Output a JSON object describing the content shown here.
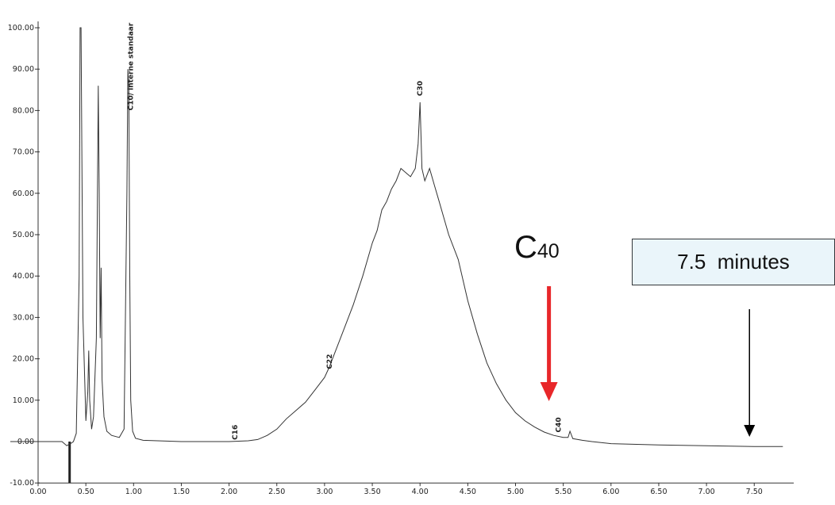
{
  "chart_data": {
    "type": "line",
    "xlim": [
      0,
      7.8
    ],
    "ylim": [
      -10,
      100
    ],
    "x_ticks": [
      "0.00",
      "0.50",
      "1.00",
      "1.50",
      "2.00",
      "2.50",
      "3.00",
      "3.50",
      "4.00",
      "4.50",
      "5.00",
      "5.50",
      "6.00",
      "6.50",
      "7.00",
      "7.50"
    ],
    "y_ticks": [
      "-10.00",
      "0.00",
      "10.00",
      "20.00",
      "30.00",
      "40.00",
      "50.00",
      "60.00",
      "70.00",
      "80.00",
      "90.00",
      "100.00"
    ],
    "series": [
      {
        "x": [
          0.0,
          0.25,
          0.3,
          0.34,
          0.37,
          0.4,
          0.43,
          0.44,
          0.45,
          0.47,
          0.5,
          0.52,
          0.53,
          0.54,
          0.56,
          0.58,
          0.61,
          0.63,
          0.64,
          0.65,
          0.66,
          0.67,
          0.69,
          0.72,
          0.77,
          0.85,
          0.9,
          0.93,
          0.94,
          0.95,
          0.96,
          0.97,
          0.99,
          1.02,
          1.1,
          1.5,
          2.0,
          2.2,
          2.3,
          2.4,
          2.5,
          2.6,
          2.7,
          2.8,
          2.9,
          3.0,
          3.05,
          3.1,
          3.2,
          3.3,
          3.4,
          3.5,
          3.55,
          3.6,
          3.65,
          3.7,
          3.75,
          3.8,
          3.85,
          3.9,
          3.95,
          3.98,
          4.0,
          4.02,
          4.05,
          4.1,
          4.15,
          4.2,
          4.25,
          4.3,
          4.4,
          4.5,
          4.6,
          4.7,
          4.8,
          4.9,
          5.0,
          5.1,
          5.2,
          5.3,
          5.4,
          5.5,
          5.55,
          5.57,
          5.6,
          5.7,
          5.8,
          6.0,
          6.5,
          7.0,
          7.5,
          7.8
        ],
        "y": [
          0.0,
          0.0,
          -1.0,
          -0.5,
          0.0,
          2.0,
          40.0,
          100.0,
          100.0,
          30.0,
          5.0,
          12.0,
          22.0,
          10.0,
          3.0,
          6.0,
          25.0,
          86.0,
          60.0,
          25.0,
          42.0,
          15.0,
          6.0,
          2.5,
          1.5,
          1.0,
          3.0,
          60.0,
          90.0,
          85.0,
          40.0,
          10.0,
          2.5,
          0.8,
          0.3,
          0.0,
          0.0,
          0.2,
          0.5,
          1.5,
          3.0,
          5.5,
          7.5,
          9.5,
          12.5,
          15.5,
          18.0,
          21.0,
          27.0,
          33.0,
          40.0,
          48.0,
          51.0,
          56.0,
          58.0,
          61.0,
          63.0,
          66.0,
          65.0,
          64.0,
          66.0,
          72.0,
          82.0,
          66.0,
          63.0,
          66.0,
          62.0,
          58.0,
          54.0,
          50.0,
          44.0,
          34.0,
          26.0,
          19.0,
          14.0,
          10.0,
          7.0,
          5.0,
          3.5,
          2.3,
          1.5,
          1.0,
          1.0,
          2.5,
          0.7,
          0.3,
          0.0,
          -0.5,
          -0.8,
          -1.0,
          -1.2,
          -1.2
        ]
      }
    ],
    "annotations": [
      "C10/ interne standaar",
      "C16",
      "C22",
      "C30",
      "C40"
    ],
    "callout_c40": {
      "main": "C",
      "sub": "40",
      "at_x": 5.35
    },
    "end_time_box": {
      "text": "7.5  minutes",
      "at_x": 7.45
    },
    "colors": {
      "trace": "#333333",
      "red_arrow": "#e8272a",
      "black_arrow": "#000000"
    }
  }
}
